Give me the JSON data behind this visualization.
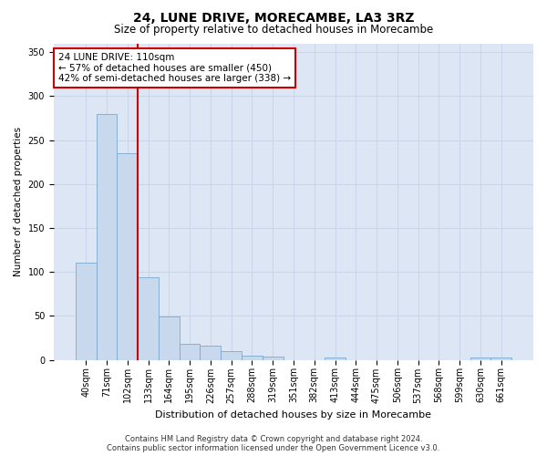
{
  "title": "24, LUNE DRIVE, MORECAMBE, LA3 3RZ",
  "subtitle": "Size of property relative to detached houses in Morecambe",
  "xlabel": "Distribution of detached houses by size in Morecambe",
  "ylabel": "Number of detached properties",
  "footer_line1": "Contains HM Land Registry data © Crown copyright and database right 2024.",
  "footer_line2": "Contains public sector information licensed under the Open Government Licence v3.0.",
  "categories": [
    "40sqm",
    "71sqm",
    "102sqm",
    "133sqm",
    "164sqm",
    "195sqm",
    "226sqm",
    "257sqm",
    "288sqm",
    "319sqm",
    "351sqm",
    "382sqm",
    "413sqm",
    "444sqm",
    "475sqm",
    "506sqm",
    "537sqm",
    "568sqm",
    "599sqm",
    "630sqm",
    "661sqm"
  ],
  "values": [
    110,
    280,
    235,
    94,
    49,
    18,
    16,
    10,
    5,
    4,
    0,
    0,
    3,
    0,
    0,
    0,
    0,
    0,
    0,
    3,
    3
  ],
  "bar_color": "#c8d9ee",
  "bar_edge_color": "#7aaace",
  "grid_color": "#c8d4e8",
  "background_color": "#dce6f5",
  "vline_color": "#cc0000",
  "vline_x": 2.5,
  "annotation_text": "24 LUNE DRIVE: 110sqm\n← 57% of detached houses are smaller (450)\n42% of semi-detached houses are larger (338) →",
  "annotation_box_facecolor": "#ffffff",
  "annotation_box_edgecolor": "#cc0000",
  "ylim": [
    0,
    360
  ],
  "yticks": [
    0,
    50,
    100,
    150,
    200,
    250,
    300,
    350
  ],
  "title_fontsize": 10,
  "subtitle_fontsize": 8.5,
  "xlabel_fontsize": 8,
  "ylabel_fontsize": 7.5,
  "tick_fontsize": 7,
  "annotation_fontsize": 7.5,
  "footer_fontsize": 6
}
